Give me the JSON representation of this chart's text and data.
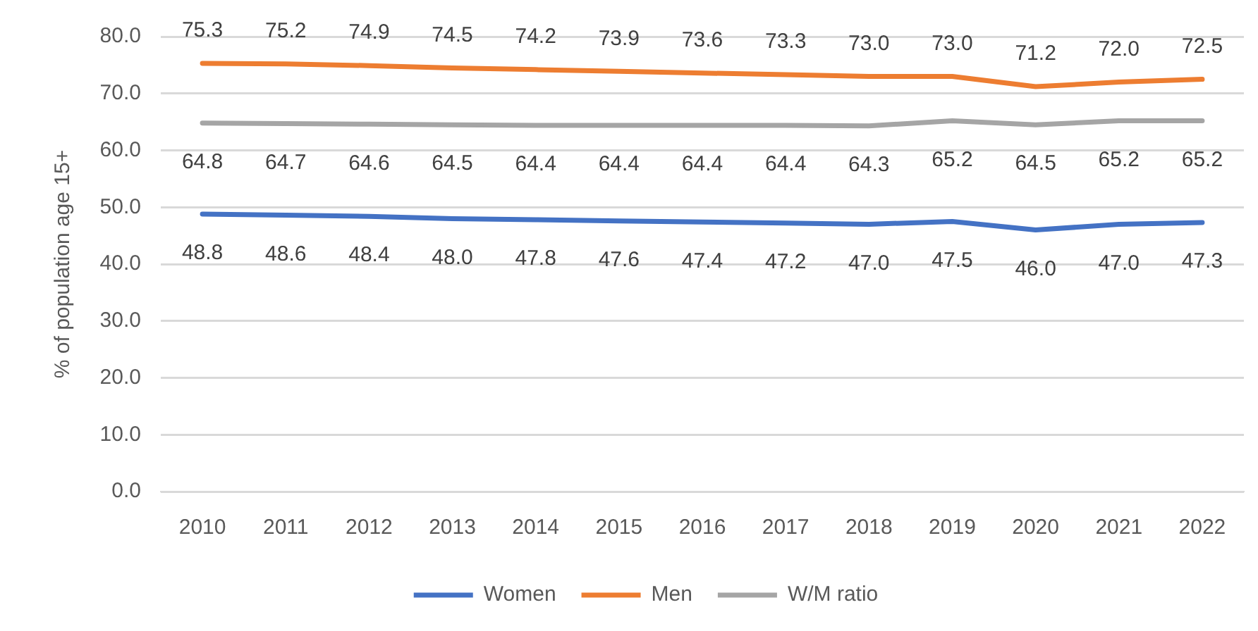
{
  "chart_data": {
    "type": "line",
    "ylabel": "% of population age 15+",
    "categories": [
      "2010",
      "2011",
      "2012",
      "2013",
      "2014",
      "2015",
      "2016",
      "2017",
      "2018",
      "2019",
      "2020",
      "2021",
      "2022"
    ],
    "series": [
      {
        "name": "Women",
        "color": "#4472c4",
        "values": [
          48.8,
          48.6,
          48.4,
          48.0,
          47.8,
          47.6,
          47.4,
          47.2,
          47.0,
          47.5,
          46.0,
          47.0,
          47.3
        ],
        "value_labels": [
          "48.8",
          "48.6",
          "48.4",
          "48.0",
          "47.8",
          "47.6",
          "47.4",
          "47.2",
          "47.0",
          "47.5",
          "46.0",
          "47.0",
          "47.3"
        ]
      },
      {
        "name": "Men",
        "color": "#ed7d31",
        "values": [
          75.3,
          75.2,
          74.9,
          74.5,
          74.2,
          73.9,
          73.6,
          73.3,
          73.0,
          73.0,
          71.2,
          72.0,
          72.5
        ],
        "value_labels": [
          "75.3",
          "75.2",
          "74.9",
          "74.5",
          "74.2",
          "73.9",
          "73.6",
          "73.3",
          "73.0",
          "73.0",
          "71.2",
          "72.0",
          "72.5"
        ]
      },
      {
        "name": "W/M ratio",
        "color": "#a5a5a5",
        "values": [
          64.8,
          64.7,
          64.6,
          64.5,
          64.4,
          64.4,
          64.4,
          64.4,
          64.3,
          65.2,
          64.5,
          65.2,
          65.2
        ],
        "value_labels": [
          "64.8",
          "64.7",
          "64.6",
          "64.5",
          "64.4",
          "64.4",
          "64.4",
          "64.4",
          "64.3",
          "65.2",
          "64.5",
          "65.2",
          "65.2"
        ]
      }
    ],
    "ylim": [
      0,
      80
    ],
    "yticks": [
      {
        "value": 0,
        "label": "0.0"
      },
      {
        "value": 10,
        "label": "10.0"
      },
      {
        "value": 20,
        "label": "20.0"
      },
      {
        "value": 30,
        "label": "30.0"
      },
      {
        "value": 40,
        "label": "40.0"
      },
      {
        "value": 50,
        "label": "50.0"
      },
      {
        "value": 60,
        "label": "60.0"
      },
      {
        "value": 70,
        "label": "70.0"
      },
      {
        "value": 80,
        "label": "80.0"
      }
    ],
    "grid": "y",
    "legend": "bottom",
    "marker": "none"
  }
}
